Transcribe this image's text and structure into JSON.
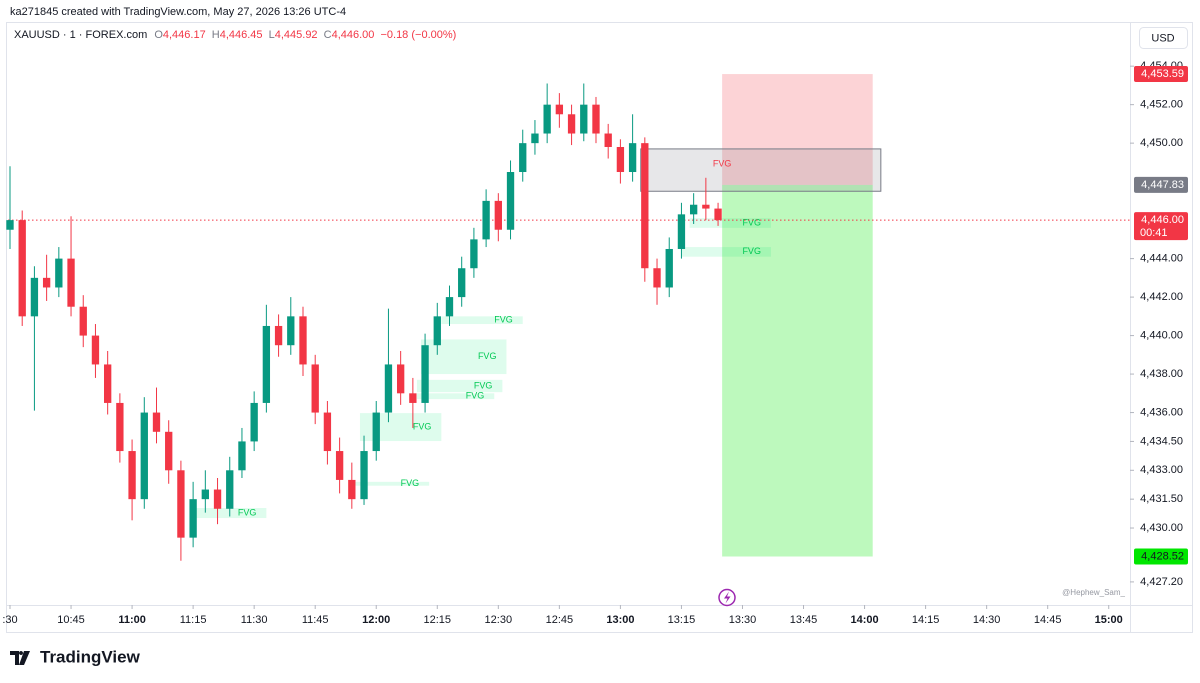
{
  "header": {
    "caption": "ka271845 created with TradingView.com, May 27, 2026 13:26 UTC-4"
  },
  "chart_data": {
    "type": "candlestick",
    "symbol": "XAUUSD · 1 · FOREX.com",
    "ohlc_legend": [
      {
        "key": "O",
        "value": "4,446.17"
      },
      {
        "key": "H",
        "value": "4,446.45"
      },
      {
        "key": "L",
        "value": "4,445.92"
      },
      {
        "key": "C",
        "value": "4,446.00"
      }
    ],
    "change": "−0.18 (−0.00%)",
    "currency": "USD",
    "up_color": "#089981",
    "down_color": "#f23645",
    "x": [
      "10:30",
      "10:33",
      "10:36",
      "10:39",
      "10:42",
      "10:45",
      "10:48",
      "10:51",
      "10:54",
      "10:57",
      "11:00",
      "11:03",
      "11:06",
      "11:09",
      "11:12",
      "11:15",
      "11:18",
      "11:21",
      "11:24",
      "11:27",
      "11:30",
      "11:33",
      "11:36",
      "11:39",
      "11:42",
      "11:45",
      "11:48",
      "11:51",
      "11:54",
      "11:57",
      "12:00",
      "12:03",
      "12:06",
      "12:09",
      "12:12",
      "12:15",
      "12:18",
      "12:21",
      "12:24",
      "12:27",
      "12:30",
      "12:33",
      "12:36",
      "12:39",
      "12:42",
      "12:45",
      "12:48",
      "12:51",
      "12:54",
      "12:57",
      "13:00",
      "13:03",
      "13:06",
      "13:09",
      "13:12",
      "13:15",
      "13:18",
      "13:21",
      "13:24"
    ],
    "open": [
      4445.5,
      4446.0,
      4441.0,
      4443.0,
      4442.5,
      4444.0,
      4441.5,
      4440.0,
      4438.5,
      4436.5,
      4434.0,
      4431.5,
      4436.0,
      4435.0,
      4433.0,
      4429.5,
      4431.5,
      4432.0,
      4431.0,
      4433.0,
      4434.5,
      4436.5,
      4440.5,
      4439.5,
      4441.0,
      4438.5,
      4436.0,
      4434.0,
      4432.5,
      4431.5,
      4434.0,
      4436.0,
      4438.5,
      4437.0,
      4436.5,
      4439.5,
      4441.0,
      4442.0,
      4443.5,
      4445.0,
      4447.0,
      4445.5,
      4448.5,
      4450.0,
      4450.5,
      4452.0,
      4451.5,
      4450.5,
      4452.0,
      4450.5,
      4449.8,
      4448.5,
      4450.0,
      4443.5,
      4442.5,
      4444.5,
      4446.3,
      4446.8,
      4446.6
    ],
    "high": [
      4448.8,
      4446.5,
      4443.6,
      4444.2,
      4444.6,
      4446.2,
      4442.1,
      4440.6,
      4439.2,
      4437.0,
      4434.6,
      4436.8,
      4437.3,
      4435.6,
      4433.5,
      4432.4,
      4433.0,
      4432.6,
      4433.7,
      4435.2,
      4437.1,
      4441.6,
      4441.1,
      4442.0,
      4441.5,
      4439.0,
      4436.6,
      4434.7,
      4433.4,
      4434.8,
      4436.6,
      4441.4,
      4439.2,
      4437.8,
      4440.1,
      4441.7,
      4442.6,
      4444.1,
      4445.6,
      4447.6,
      4447.4,
      4449.1,
      4450.7,
      4451.2,
      4453.1,
      4452.6,
      4452.0,
      4453.1,
      4452.4,
      4451.0,
      4450.2,
      4451.5,
      4450.3,
      4444.0,
      4445.1,
      4446.9,
      4447.4,
      4448.2,
      4446.9
    ],
    "low": [
      4444.5,
      4440.5,
      4436.1,
      4441.8,
      4442.0,
      4441.0,
      4439.4,
      4437.8,
      4435.9,
      4433.4,
      4430.4,
      4431.0,
      4434.4,
      4432.3,
      4428.3,
      4429.0,
      4430.8,
      4430.2,
      4430.6,
      4432.6,
      4434.0,
      4436.0,
      4438.9,
      4439.0,
      4437.9,
      4435.4,
      4433.3,
      4431.8,
      4431.0,
      4431.2,
      4433.5,
      4435.5,
      4436.4,
      4435.2,
      4436.0,
      4439.0,
      4440.5,
      4441.5,
      4443.0,
      4444.6,
      4444.9,
      4445.0,
      4448.0,
      4449.4,
      4450.0,
      4450.8,
      4449.9,
      4450.1,
      4450.0,
      4449.2,
      4447.9,
      4448.0,
      4442.8,
      4441.6,
      4442.0,
      4444.0,
      4445.8,
      4446.0,
      4445.7
    ],
    "close": [
      4446.0,
      4441.0,
      4443.0,
      4442.5,
      4444.0,
      4441.5,
      4440.0,
      4438.5,
      4436.5,
      4434.0,
      4431.5,
      4436.0,
      4435.0,
      4433.0,
      4429.5,
      4431.5,
      4432.0,
      4431.0,
      4433.0,
      4434.5,
      4436.5,
      4440.5,
      4439.5,
      4441.0,
      4438.5,
      4436.0,
      4434.0,
      4432.5,
      4431.5,
      4434.0,
      4436.0,
      4438.5,
      4437.0,
      4436.5,
      4439.5,
      4441.0,
      4442.0,
      4443.5,
      4445.0,
      4447.0,
      4445.5,
      4448.5,
      4450.0,
      4450.5,
      4452.0,
      4451.5,
      4450.5,
      4452.0,
      4450.5,
      4449.8,
      4448.5,
      4450.0,
      4443.5,
      4442.5,
      4444.5,
      4446.3,
      4446.8,
      4446.6,
      4446.0
    ],
    "xlim": [
      "10:30",
      "15:04"
    ],
    "xticks": [
      {
        "value": "10:30",
        "label": ":30"
      },
      "10:45",
      "11:00",
      "11:15",
      "11:30",
      "11:45",
      "12:00",
      "12:15",
      "12:30",
      "12:45",
      "13:00",
      "13:15",
      "13:30",
      "13:45",
      "14:00",
      "14:15",
      "14:30",
      "14:45",
      "15:00"
    ],
    "ylim": [
      4426.0,
      4455.1
    ],
    "yticks": [
      {
        "value": 4454,
        "label": "4,454.00"
      },
      {
        "value": 4452,
        "label": "4,452.00"
      },
      {
        "value": 4450,
        "label": "4,450.00"
      },
      {
        "value": 4444,
        "label": "4,444.00"
      },
      {
        "value": 4442,
        "label": "4,442.00"
      },
      {
        "value": 4440,
        "label": "4,440.00"
      },
      {
        "value": 4438,
        "label": "4,438.00"
      },
      {
        "value": 4436,
        "label": "4,436.00"
      },
      {
        "value": 4434.5,
        "label": "4,434.50"
      },
      {
        "value": 4433,
        "label": "4,433.00"
      },
      {
        "value": 4431.5,
        "label": "4,431.50"
      },
      {
        "value": 4430,
        "label": "4,430.00"
      },
      {
        "value": 4427.2,
        "label": "4,427.20"
      }
    ],
    "current_price": {
      "value": 4446.0,
      "label": "4,446.00",
      "countdown": "00:41"
    },
    "position": {
      "start": "13:25",
      "end": "14:02",
      "stop": {
        "value": 4453.59,
        "label": "4,453.59"
      },
      "entry": {
        "value": 4447.83,
        "label": "4,447.83"
      },
      "target": {
        "value": 4428.52,
        "label": "4,428.52"
      }
    },
    "order_block": {
      "start": "13:05",
      "end": "14:04",
      "top": 4449.7,
      "bottom": 4447.5,
      "label": "FVG"
    },
    "fvg_zones": [
      {
        "start": "11:15",
        "end": "11:33",
        "top": 4431.04,
        "bottom": 4430.52,
        "label": "FVG"
      },
      {
        "start": "11:54",
        "end": "12:13",
        "top": 4432.4,
        "bottom": 4432.2,
        "label": "FVG"
      },
      {
        "start": "11:56",
        "end": "12:16",
        "top": 4435.97,
        "bottom": 4434.52,
        "label": "FVG"
      },
      {
        "start": "12:10",
        "end": "12:29",
        "top": 4437.0,
        "bottom": 4436.7,
        "label": "FVG"
      },
      {
        "start": "12:10",
        "end": "12:31",
        "top": 4437.7,
        "bottom": 4437.06,
        "label": "FVG"
      },
      {
        "start": "12:11",
        "end": "12:32",
        "top": 4439.8,
        "bottom": 4438.0,
        "label": "FVG"
      },
      {
        "start": "12:16",
        "end": "12:36",
        "top": 4441.0,
        "bottom": 4440.6,
        "label": "FVG"
      },
      {
        "start": "13:17",
        "end": "13:37",
        "top": 4446.1,
        "bottom": 4445.6,
        "label": "FVG"
      },
      {
        "start": "13:15",
        "end": "13:37",
        "top": 4444.6,
        "bottom": 4444.1,
        "label": "FVG"
      }
    ],
    "watermark": "@Hephew_Sam_"
  },
  "footer": {
    "brand": "TradingView"
  }
}
